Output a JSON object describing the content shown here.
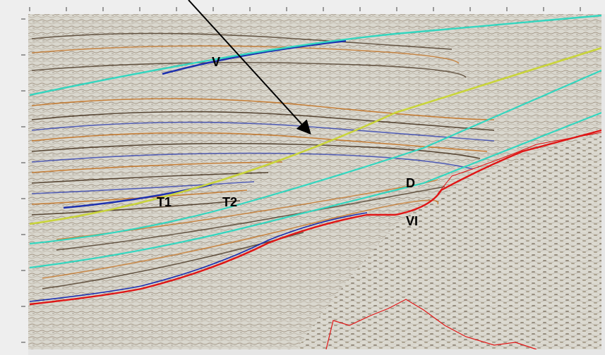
{
  "labels": {
    "v": "V",
    "t1": "T1",
    "t2": "T2",
    "d": "D",
    "vi": "VI"
  },
  "colors": {
    "background": "#d8d6cc",
    "horizon_cyan": "#33d6bf",
    "horizon_yellow": "#c9d43a",
    "horizon_red": "#e01515",
    "reflector_blue": "#1c2fb0",
    "reflector_dark": "#3a2612",
    "reflector_orange": "#c26a14",
    "arrow": "#000000"
  }
}
